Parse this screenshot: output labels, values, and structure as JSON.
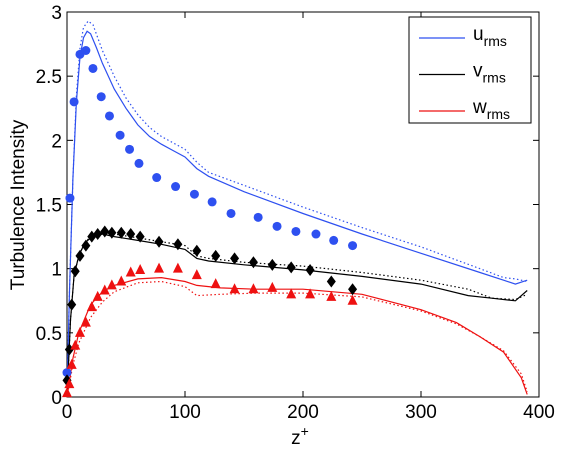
{
  "chart_data": {
    "type": "line",
    "xlabel": "z",
    "xlabel_sup": "+",
    "ylabel": "Turbulence Intensity",
    "xlim": [
      0,
      400
    ],
    "ylim": [
      0,
      3
    ],
    "xticks": [
      0,
      100,
      200,
      300,
      400
    ],
    "yticks": [
      0,
      0.5,
      1,
      1.5,
      2,
      2.5,
      3
    ],
    "grid": false,
    "legend": "upper right",
    "series": [
      {
        "name": "u",
        "subscript": "rms",
        "color": "#2e50f0",
        "style": "solid",
        "x": [
          0,
          2,
          5,
          8,
          11,
          14,
          17,
          20,
          25,
          30,
          40,
          50,
          60,
          70,
          80,
          90,
          100,
          110,
          120,
          150,
          200,
          250,
          300,
          350,
          370,
          380,
          390
        ],
        "values": [
          0,
          0.8,
          1.7,
          2.3,
          2.65,
          2.8,
          2.85,
          2.83,
          2.72,
          2.6,
          2.4,
          2.25,
          2.12,
          2.03,
          1.97,
          1.92,
          1.87,
          1.78,
          1.72,
          1.6,
          1.43,
          1.27,
          1.12,
          0.97,
          0.91,
          0.88,
          0.91
        ]
      },
      {
        "name": "v",
        "subscript": "rms",
        "color": "#000000",
        "style": "solid",
        "x": [
          0,
          3,
          6,
          10,
          15,
          20,
          30,
          40,
          60,
          80,
          100,
          110,
          120,
          150,
          200,
          250,
          300,
          340,
          360,
          380,
          390
        ],
        "values": [
          0,
          0.6,
          0.95,
          1.1,
          1.2,
          1.24,
          1.27,
          1.25,
          1.22,
          1.19,
          1.15,
          1.08,
          1.06,
          1.03,
          0.99,
          0.94,
          0.88,
          0.79,
          0.77,
          0.75,
          0.83
        ]
      },
      {
        "name": "w",
        "subscript": "rms",
        "color": "#ee1111",
        "style": "solid",
        "x": [
          0,
          5,
          10,
          20,
          30,
          40,
          60,
          80,
          100,
          110,
          130,
          160,
          200,
          250,
          300,
          330,
          350,
          370,
          385,
          390
        ],
        "values": [
          0,
          0.3,
          0.5,
          0.72,
          0.82,
          0.87,
          0.92,
          0.93,
          0.9,
          0.87,
          0.85,
          0.84,
          0.84,
          0.8,
          0.68,
          0.58,
          0.47,
          0.35,
          0.15,
          0.02
        ]
      },
      {
        "color": "#2e50f0",
        "style": "dotted",
        "x": [
          0,
          2,
          5,
          8,
          11,
          14,
          18,
          22,
          30,
          40,
          50,
          60,
          70,
          80,
          90,
          100,
          110,
          120,
          150,
          200,
          250,
          300,
          350,
          370,
          380,
          390
        ],
        "values": [
          0,
          0.8,
          1.7,
          2.35,
          2.72,
          2.88,
          2.93,
          2.9,
          2.7,
          2.5,
          2.33,
          2.2,
          2.1,
          2.03,
          1.98,
          1.93,
          1.83,
          1.75,
          1.65,
          1.48,
          1.32,
          1.17,
          1.0,
          0.93,
          0.92,
          0.9
        ]
      },
      {
        "color": "#000000",
        "style": "dotted",
        "x": [
          0,
          3,
          6,
          10,
          15,
          20,
          30,
          40,
          60,
          80,
          100,
          110,
          120,
          150,
          200,
          250,
          300,
          340,
          360,
          380,
          390
        ],
        "values": [
          0,
          0.6,
          0.95,
          1.1,
          1.2,
          1.25,
          1.28,
          1.27,
          1.24,
          1.21,
          1.18,
          1.1,
          1.08,
          1.05,
          1.02,
          0.97,
          0.91,
          0.84,
          0.77,
          0.76,
          0.8
        ]
      },
      {
        "color": "#ee1111",
        "style": "dotted",
        "x": [
          0,
          5,
          10,
          20,
          30,
          40,
          60,
          80,
          100,
          110,
          130,
          160,
          200,
          250,
          300,
          330,
          350,
          370,
          385,
          390
        ],
        "values": [
          0,
          0.25,
          0.42,
          0.62,
          0.74,
          0.82,
          0.89,
          0.9,
          0.86,
          0.79,
          0.8,
          0.81,
          0.81,
          0.78,
          0.67,
          0.57,
          0.47,
          0.36,
          0.18,
          0.04
        ]
      },
      {
        "color": "#2e50f0",
        "style": "none",
        "marker": "circle",
        "x": [
          0,
          2.5,
          6,
          11,
          16,
          22,
          29,
          36,
          45,
          53,
          61,
          76,
          92,
          108,
          123,
          139,
          162,
          178,
          194,
          211,
          226,
          242
        ],
        "values": [
          0.19,
          1.55,
          2.3,
          2.67,
          2.7,
          2.56,
          2.34,
          2.19,
          2.04,
          1.93,
          1.82,
          1.71,
          1.64,
          1.58,
          1.52,
          1.43,
          1.4,
          1.33,
          1.29,
          1.27,
          1.22,
          1.18
        ]
      },
      {
        "color": "#000000",
        "style": "none",
        "marker": "diamond",
        "x": [
          0,
          2,
          4,
          7,
          11,
          16,
          21,
          26,
          32,
          38,
          46,
          54,
          62,
          78,
          94,
          110,
          126,
          142,
          158,
          174,
          190,
          206,
          224,
          242
        ],
        "values": [
          0.13,
          0.37,
          0.72,
          0.98,
          1.1,
          1.18,
          1.25,
          1.27,
          1.29,
          1.28,
          1.28,
          1.27,
          1.25,
          1.21,
          1.19,
          1.14,
          1.1,
          1.08,
          1.05,
          1.03,
          1.01,
          0.99,
          0.9,
          0.84
        ]
      },
      {
        "color": "#ee1111",
        "style": "none",
        "marker": "triangle",
        "x": [
          0,
          2,
          4,
          7,
          11,
          16,
          21,
          26,
          32,
          38,
          46,
          54,
          62,
          78,
          94,
          110,
          126,
          142,
          158,
          174,
          190,
          206,
          224,
          242
        ],
        "values": [
          0.03,
          0.1,
          0.25,
          0.4,
          0.5,
          0.58,
          0.7,
          0.78,
          0.83,
          0.87,
          0.9,
          0.97,
          0.99,
          1.0,
          1.0,
          0.95,
          0.88,
          0.84,
          0.84,
          0.85,
          0.8,
          0.8,
          0.78,
          0.75
        ]
      }
    ]
  }
}
